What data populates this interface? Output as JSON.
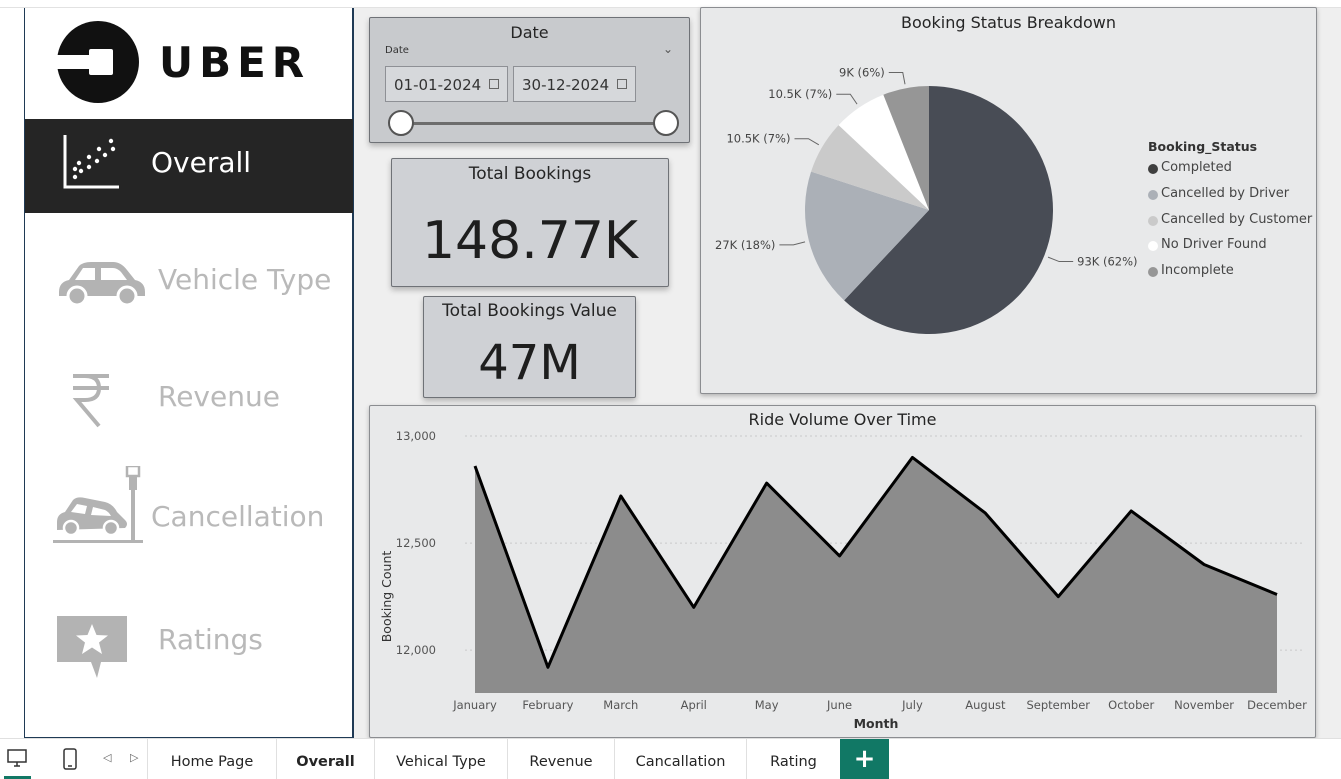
{
  "logo": {
    "text": "UBER"
  },
  "nav": [
    {
      "label": "Overall",
      "icon": "scatter-chart-icon",
      "active": true
    },
    {
      "label": "Vehicle Type",
      "icon": "car-icon"
    },
    {
      "label": "Revenue",
      "icon": "rupee-icon"
    },
    {
      "label": "Cancellation",
      "icon": "car-crash-icon"
    },
    {
      "label": "Ratings",
      "icon": "star-chat-icon"
    }
  ],
  "date_filter": {
    "title": "Date",
    "field_label": "Date",
    "start": "01-01-2024",
    "end": "30-12-2024"
  },
  "kpi_total_bookings": {
    "title": "Total Bookings",
    "value": "148.77K"
  },
  "kpi_total_value": {
    "title": "Total Bookings Value",
    "value": "47M"
  },
  "pie_panel": {
    "title": "Booking Status Breakdown",
    "legend_title": "Booking_Status"
  },
  "line_panel": {
    "title": "Ride Volume Over Time"
  },
  "chart_data": [
    {
      "type": "pie",
      "title": "Booking Status Breakdown",
      "legend_title": "Booking_Status",
      "legend_position": "right",
      "slices": [
        {
          "label": "Completed",
          "value": 93,
          "data_label": "93K (62%)",
          "color": "#484c55"
        },
        {
          "label": "Cancelled by Driver",
          "value": 27,
          "data_label": "27K (18%)",
          "color": "#abb0b7"
        },
        {
          "label": "Cancelled by Customer",
          "value": 10.5,
          "data_label": "10.5K (7%)",
          "color": "#cacaca"
        },
        {
          "label": "No Driver Found",
          "value": 10.5,
          "data_label": "10.5K (7%)",
          "color": "#ffffff"
        },
        {
          "label": "Incomplete",
          "value": 9,
          "data_label": "9K (6%)",
          "color": "#969696"
        }
      ]
    },
    {
      "type": "area",
      "title": "Ride Volume Over Time",
      "xlabel": "Month",
      "ylabel": "Booking Count",
      "ylim": [
        11800,
        13000
      ],
      "yticks": [
        "12,000",
        "12,500",
        "13,000"
      ],
      "ytick_values": [
        12000,
        12500,
        13000
      ],
      "categories": [
        "January",
        "February",
        "March",
        "April",
        "May",
        "June",
        "July",
        "August",
        "September",
        "October",
        "November",
        "December"
      ],
      "values": [
        12860,
        11920,
        12720,
        12200,
        12780,
        12440,
        12900,
        12640,
        12250,
        12650,
        12400,
        12260
      ],
      "grid": true,
      "colors": {
        "fill": "#8c8c8c",
        "line": "#000000"
      }
    }
  ],
  "bottom_tabs": [
    {
      "label": "Home Page"
    },
    {
      "label": "Overall",
      "active": true
    },
    {
      "label": "Vehical Type"
    },
    {
      "label": "Revenue"
    },
    {
      "label": "Cancallation"
    },
    {
      "label": "Rating"
    }
  ],
  "add_tab": {
    "label": "+"
  },
  "colors": {
    "accent": "#117865",
    "sidebar_active": "#252525",
    "card_bg": "#cfd1d5"
  }
}
